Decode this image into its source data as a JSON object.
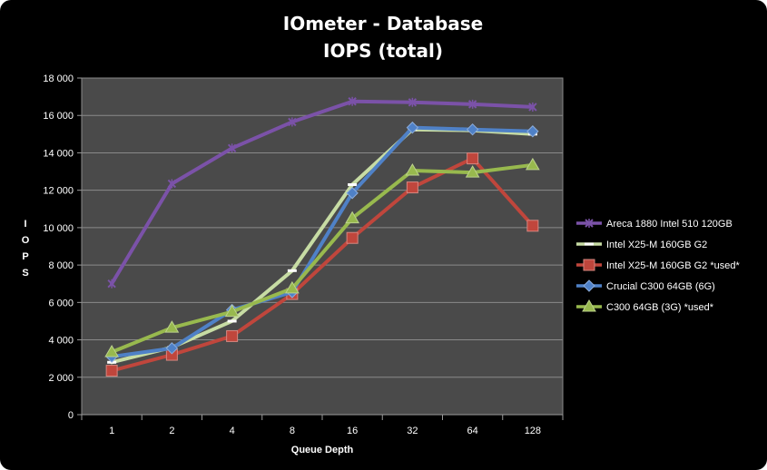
{
  "chart_data": {
    "type": "line",
    "title": "IOmeter - Database",
    "subtitle": "IOPS (total)",
    "xlabel": "Queue Depth",
    "ylabel": "IOPS",
    "ylabel_letters": [
      "I",
      "O",
      "P",
      "S"
    ],
    "categories": [
      "1",
      "2",
      "4",
      "8",
      "16",
      "32",
      "64",
      "128"
    ],
    "ylim": [
      0,
      18000
    ],
    "yticks": [
      0,
      2000,
      4000,
      6000,
      8000,
      10000,
      12000,
      14000,
      16000,
      18000
    ],
    "ytick_labels": [
      "0",
      "2 000",
      "4 000",
      "6 000",
      "8 000",
      "10 000",
      "12 000",
      "14 000",
      "16 000",
      "18 000"
    ],
    "grid": "horizontal",
    "legend_position": "right",
    "plot_background": "#4a4a4a",
    "series": [
      {
        "name": "Areca 1880 Intel 510 120GB",
        "color": "#7b52a8",
        "marker": "star",
        "values": [
          7000,
          12350,
          14250,
          15650,
          16750,
          16700,
          16600,
          16450
        ]
      },
      {
        "name": "Intel X25-M 160GB G2",
        "color": "#c7dca4",
        "marker": "dash",
        "values": [
          2800,
          3600,
          5000,
          7700,
          12300,
          15250,
          15200,
          15000
        ]
      },
      {
        "name": "Intel X25-M 160GB G2 *used*",
        "color": "#c0463c",
        "marker": "square",
        "values": [
          2350,
          3200,
          4200,
          6450,
          9450,
          12150,
          13700,
          10100
        ]
      },
      {
        "name": "Crucial C300 64GB (6G)",
        "color": "#4f81c7",
        "marker": "diamond",
        "values": [
          3100,
          3550,
          5600,
          6550,
          11850,
          15350,
          15250,
          15150
        ]
      },
      {
        "name": "C300 64GB (3G) *used*",
        "color": "#98b94e",
        "marker": "triangle",
        "values": [
          3350,
          4650,
          5500,
          6750,
          10500,
          13050,
          12950,
          13350
        ]
      }
    ]
  }
}
